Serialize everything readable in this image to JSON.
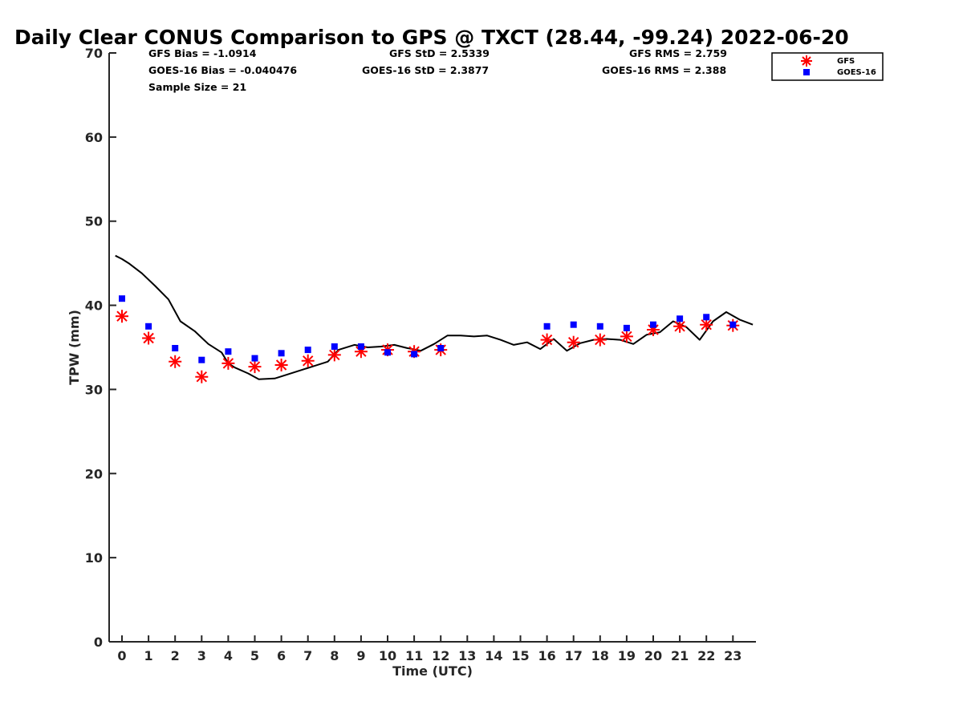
{
  "chart_data": {
    "type": "scatter",
    "title": "Daily Clear CONUS Comparison to GPS @ TXCT (28.44, -99.24) 2022-06-20",
    "xlabel": "Time (UTC)",
    "ylabel": "TPW (mm)",
    "ylim": [
      0,
      70
    ],
    "yticks": [
      0,
      10,
      20,
      30,
      40,
      50,
      60,
      70
    ],
    "categories": [
      "0",
      "1",
      "2",
      "3",
      "4",
      "5",
      "6",
      "7",
      "8",
      "9",
      "10",
      "11",
      "12",
      "13",
      "14",
      "15",
      "16",
      "17",
      "18",
      "19",
      "20",
      "21",
      "22",
      "23"
    ],
    "grid": false,
    "legend_position": "top-right",
    "stats": {
      "gfs_bias": "GFS Bias = -1.0914",
      "gfs_std": "GFS StD = 2.5339",
      "gfs_rms": "GFS RMS = 2.759",
      "goes_bias": "GOES-16 Bias = -0.040476",
      "goes_std": "GOES-16 StD = 2.3877",
      "goes_rms": "GOES-16 RMS = 2.388",
      "sample_size": "Sample Size = 21"
    },
    "series": [
      {
        "name": "GFS",
        "marker": "asterisk",
        "color": "#ff0000",
        "points": [
          [
            0,
            38.7
          ],
          [
            1,
            36.1
          ],
          [
            2,
            33.3
          ],
          [
            3,
            31.5
          ],
          [
            4,
            33.1
          ],
          [
            5,
            32.7
          ],
          [
            6,
            32.9
          ],
          [
            7,
            33.4
          ],
          [
            8,
            34.1
          ],
          [
            9,
            34.5
          ],
          [
            10,
            34.7
          ],
          [
            11,
            34.5
          ],
          [
            12,
            34.7
          ],
          [
            16,
            35.9
          ],
          [
            17,
            35.6
          ],
          [
            18,
            35.9
          ],
          [
            19,
            36.3
          ],
          [
            20,
            37.1
          ],
          [
            21,
            37.5
          ],
          [
            22,
            37.7
          ],
          [
            23,
            37.6
          ]
        ]
      },
      {
        "name": "GOES-16",
        "marker": "square",
        "color": "#0000ff",
        "points": [
          [
            0,
            40.8
          ],
          [
            1,
            37.5
          ],
          [
            2,
            34.9
          ],
          [
            3,
            33.5
          ],
          [
            4,
            34.5
          ],
          [
            5,
            33.7
          ],
          [
            6,
            34.3
          ],
          [
            7,
            34.7
          ],
          [
            8,
            35.1
          ],
          [
            9,
            35.1
          ],
          [
            10,
            34.4
          ],
          [
            11,
            34.2
          ],
          [
            12,
            34.9
          ],
          [
            16,
            37.5
          ],
          [
            17,
            37.7
          ],
          [
            18,
            37.5
          ],
          [
            19,
            37.3
          ],
          [
            20,
            37.7
          ],
          [
            21,
            38.4
          ],
          [
            22,
            38.6
          ],
          [
            23,
            37.7
          ]
        ]
      },
      {
        "name": "GPS",
        "marker": "line",
        "color": "#000000",
        "points": [
          [
            -0.25,
            45.9
          ],
          [
            0,
            45.5
          ],
          [
            0.25,
            45.0
          ],
          [
            0.75,
            43.8
          ],
          [
            1.25,
            42.3
          ],
          [
            1.75,
            40.7
          ],
          [
            2.2,
            38.1
          ],
          [
            2.75,
            36.9
          ],
          [
            3.25,
            35.4
          ],
          [
            3.75,
            34.4
          ],
          [
            4.0,
            33.1
          ],
          [
            4.25,
            32.6
          ],
          [
            4.75,
            31.9
          ],
          [
            5.15,
            31.2
          ],
          [
            5.75,
            31.3
          ],
          [
            6.25,
            31.8
          ],
          [
            6.75,
            32.3
          ],
          [
            7.25,
            32.8
          ],
          [
            7.75,
            33.3
          ],
          [
            8.15,
            34.7
          ],
          [
            8.75,
            35.3
          ],
          [
            9.25,
            35.0
          ],
          [
            9.75,
            35.1
          ],
          [
            10.25,
            35.3
          ],
          [
            10.75,
            34.9
          ],
          [
            11.25,
            34.6
          ],
          [
            11.75,
            35.4
          ],
          [
            12.25,
            36.4
          ],
          [
            12.75,
            36.4
          ],
          [
            13.25,
            36.3
          ],
          [
            13.75,
            36.4
          ],
          [
            14.25,
            35.9
          ],
          [
            14.75,
            35.3
          ],
          [
            15.25,
            35.6
          ],
          [
            15.75,
            34.8
          ],
          [
            16.25,
            36.0
          ],
          [
            16.75,
            34.6
          ],
          [
            17.25,
            35.5
          ],
          [
            17.75,
            35.9
          ],
          [
            18.25,
            36.0
          ],
          [
            18.75,
            35.9
          ],
          [
            19.25,
            35.4
          ],
          [
            19.75,
            36.5
          ],
          [
            20.25,
            36.8
          ],
          [
            20.75,
            38.1
          ],
          [
            21.25,
            37.4
          ],
          [
            21.75,
            35.9
          ],
          [
            22.25,
            38.1
          ],
          [
            22.75,
            39.2
          ],
          [
            23.25,
            38.3
          ],
          [
            23.75,
            37.7
          ]
        ]
      }
    ]
  }
}
